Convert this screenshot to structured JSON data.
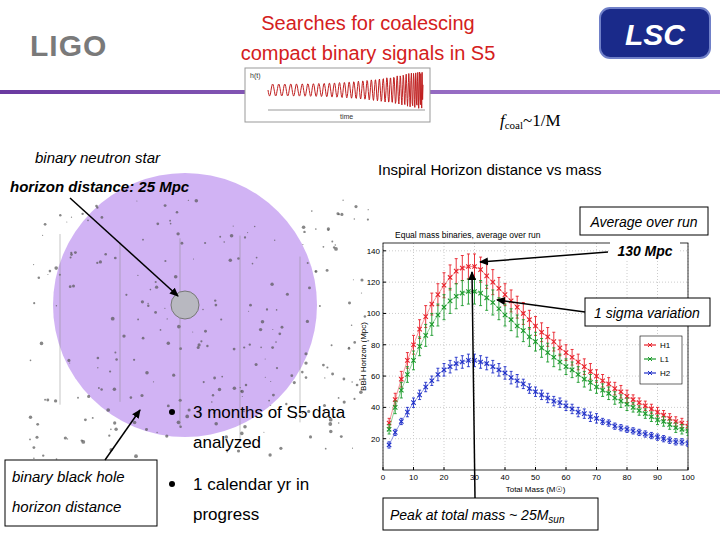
{
  "slide": {
    "title": [
      "Searches for coalescing",
      "compact binary signals in S5"
    ],
    "logo_left": "LIGO",
    "logo_right": "LSC",
    "waveform_labels": [
      "h(t)",
      "time"
    ],
    "fcoal": {
      "symbol": "f",
      "subscript": "coal",
      "rest": "~1/M"
    },
    "bns_label": [
      "binary neutron star",
      "horizon distance: 25 Mpc"
    ],
    "bbh_label": [
      "binary black hole",
      "horizon distance"
    ],
    "chart_heading": "Inspiral Horizon distance vs mass",
    "callouts": {
      "average": "Average over run",
      "peak_distance": "130 Mpc",
      "sigma": "1 sigma variation",
      "peak_mass": {
        "text": "Peak at total mass ~ 25M",
        "subscript": "sun"
      }
    },
    "bullets": [
      [
        "3 months of S5 data",
        "analyzed"
      ],
      [
        "1 calendar yr in",
        "progress"
      ]
    ]
  },
  "chart_data": {
    "type": "line",
    "title": "Equal mass binaries, average over run",
    "x_label": "Total Mass (M☉)",
    "y_label": "BBH Horizon (Mpc)",
    "xlim": [
      0,
      100
    ],
    "xticks": [
      0,
      10,
      20,
      30,
      40,
      50,
      60,
      70,
      80,
      90,
      100
    ],
    "ylim": [
      0,
      145
    ],
    "yticks": [
      20,
      40,
      60,
      80,
      100,
      120,
      140
    ],
    "grid": true,
    "legend": "right",
    "x": [
      2,
      4,
      6,
      8,
      10,
      12,
      14,
      16,
      18,
      20,
      22,
      24,
      26,
      28,
      30,
      32,
      34,
      36,
      38,
      40,
      42,
      44,
      46,
      48,
      50,
      52,
      54,
      56,
      58,
      60,
      62,
      64,
      66,
      68,
      70,
      72,
      74,
      76,
      78,
      80,
      82,
      84,
      86,
      88,
      90,
      92,
      94,
      96,
      98,
      100
    ],
    "series": [
      {
        "name": "H1",
        "color": "#e8202a",
        "marker": "x",
        "values": [
          30,
          45,
          58,
          70,
          80,
          90,
          98,
          106,
          112,
          118,
          123,
          127,
          129,
          130,
          130,
          128,
          124,
          120,
          116,
          112,
          108,
          104,
          100,
          96,
          92,
          88,
          85,
          82,
          78,
          75,
          72,
          69,
          66,
          63,
          60,
          57,
          55,
          52,
          50,
          47,
          45,
          43,
          41,
          39,
          37,
          35,
          33,
          31,
          30,
          28
        ],
        "errors": [
          3,
          4,
          5,
          5,
          6,
          6,
          7,
          7,
          7,
          8,
          8,
          8,
          8,
          8,
          8,
          8,
          8,
          8,
          7,
          7,
          7,
          7,
          7,
          6,
          6,
          6,
          6,
          6,
          5,
          5,
          5,
          5,
          5,
          5,
          4,
          4,
          4,
          4,
          4,
          4,
          3,
          3,
          3,
          3,
          3,
          3,
          3,
          3,
          3,
          3
        ]
      },
      {
        "name": "L1",
        "color": "#1a9a2a",
        "marker": "x",
        "values": [
          26,
          40,
          51,
          61,
          70,
          79,
          86,
          93,
          99,
          104,
          108,
          111,
          113,
          114,
          114,
          113,
          110,
          107,
          103,
          99,
          96,
          92,
          89,
          85,
          82,
          78,
          75,
          72,
          69,
          66,
          64,
          61,
          58,
          56,
          53,
          51,
          49,
          46,
          44,
          42,
          40,
          38,
          36,
          34,
          32,
          31,
          29,
          27,
          26,
          25
        ],
        "errors": [
          3,
          4,
          5,
          5,
          6,
          6,
          7,
          7,
          7,
          8,
          8,
          8,
          8,
          8,
          8,
          8,
          8,
          8,
          7,
          7,
          7,
          7,
          7,
          6,
          6,
          6,
          6,
          6,
          5,
          5,
          5,
          5,
          5,
          5,
          4,
          4,
          4,
          4,
          4,
          4,
          3,
          3,
          3,
          3,
          3,
          3,
          3,
          3,
          3,
          3
        ]
      },
      {
        "name": "H2",
        "color": "#2030c8",
        "marker": "x",
        "values": [
          16,
          24,
          31,
          37,
          43,
          48,
          53,
          57,
          61,
          64,
          66,
          68,
          69,
          70,
          70,
          69,
          68,
          66,
          64,
          62,
          59,
          57,
          55,
          52,
          50,
          48,
          46,
          44,
          43,
          41,
          39,
          37,
          36,
          34,
          33,
          31,
          30,
          28,
          27,
          26,
          25,
          24,
          23,
          22,
          21,
          20,
          19,
          18,
          18,
          17
        ],
        "errors": [
          2,
          2,
          2,
          3,
          3,
          3,
          3,
          3,
          4,
          4,
          4,
          4,
          4,
          4,
          4,
          4,
          4,
          4,
          4,
          4,
          4,
          4,
          3,
          3,
          3,
          3,
          3,
          3,
          3,
          3,
          3,
          3,
          3,
          3,
          3,
          2,
          2,
          2,
          2,
          2,
          2,
          2,
          2,
          2,
          2,
          2,
          2,
          2,
          2,
          2
        ]
      }
    ]
  }
}
